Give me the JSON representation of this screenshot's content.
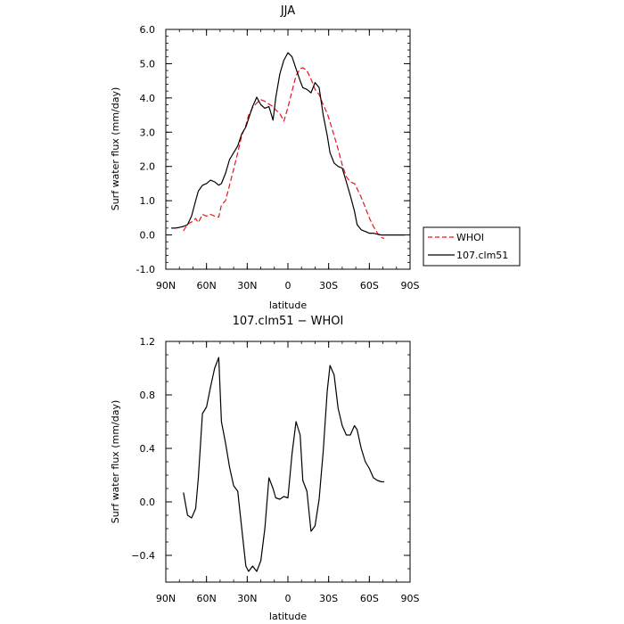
{
  "chart_data": [
    {
      "type": "line",
      "title": "JJA",
      "xlabel": "latitude",
      "ylabel": "Surf water flux (mm/day)",
      "xlim": [
        90,
        -90
      ],
      "ylim": [
        -1.0,
        6.0
      ],
      "xticks": [
        90,
        60,
        30,
        0,
        -30,
        -60,
        -90
      ],
      "xtick_labels": [
        "90N",
        "60N",
        "30N",
        "0",
        "30S",
        "60S",
        "90S"
      ],
      "yticks": [
        -1.0,
        0.0,
        1.0,
        2.0,
        3.0,
        4.0,
        5.0,
        6.0
      ],
      "ytick_labels": [
        "-1.0",
        "0.0",
        "1.0",
        "2.0",
        "3.0",
        "4.0",
        "5.0",
        "6.0"
      ],
      "legend_position": "outside-right",
      "series": [
        {
          "name": "WHOI",
          "color": "#e8141c",
          "dash": "dashed",
          "x": [
            77,
            74,
            71,
            68,
            66,
            63,
            60,
            57,
            54,
            51,
            49,
            46,
            43,
            40,
            37,
            34,
            31,
            29,
            26,
            23,
            20,
            17,
            14,
            11,
            9,
            6,
            3,
            0,
            -3,
            -6,
            -9,
            -11,
            -14,
            -17,
            -20,
            -23,
            -26,
            -29,
            -31,
            -34,
            -37,
            -40,
            -43,
            -46,
            -49,
            -51,
            -54,
            -57,
            -60,
            -63,
            -66,
            -69,
            -71
          ],
          "y": [
            0.12,
            0.32,
            0.38,
            0.48,
            0.36,
            0.6,
            0.55,
            0.6,
            0.55,
            0.52,
            0.88,
            1.0,
            1.45,
            1.92,
            2.4,
            2.9,
            3.2,
            3.5,
            3.72,
            3.85,
            3.95,
            3.9,
            3.82,
            3.75,
            3.65,
            3.55,
            3.32,
            3.72,
            4.2,
            4.65,
            4.85,
            4.88,
            4.8,
            4.55,
            4.25,
            4.1,
            3.8,
            3.55,
            3.3,
            2.9,
            2.5,
            2.05,
            1.7,
            1.55,
            1.5,
            1.35,
            1.1,
            0.8,
            0.5,
            0.25,
            0.05,
            -0.08,
            -0.1
          ]
        },
        {
          "name": "107.clm51",
          "color": "#000000",
          "dash": "solid",
          "x": [
            86,
            83,
            80,
            77,
            74,
            71,
            68,
            66,
            63,
            60,
            57,
            54,
            51,
            49,
            46,
            43,
            40,
            37,
            34,
            31,
            29,
            26,
            23,
            20,
            17,
            14,
            11,
            9,
            6,
            3,
            0,
            -3,
            -6,
            -9,
            -11,
            -14,
            -17,
            -20,
            -23,
            -26,
            -29,
            -31,
            -34,
            -37,
            -40,
            -43,
            -46,
            -49,
            -51,
            -54,
            -57,
            -60,
            -63,
            -66,
            -69,
            -71,
            -74,
            -77,
            -80,
            -83,
            -86
          ],
          "y": [
            0.2,
            0.2,
            0.22,
            0.25,
            0.3,
            0.55,
            1.0,
            1.28,
            1.45,
            1.5,
            1.6,
            1.55,
            1.45,
            1.5,
            1.8,
            2.2,
            2.4,
            2.6,
            2.95,
            3.15,
            3.4,
            3.75,
            4.02,
            3.8,
            3.7,
            3.75,
            3.35,
            4.0,
            4.7,
            5.1,
            5.32,
            5.2,
            4.85,
            4.5,
            4.3,
            4.25,
            4.15,
            4.45,
            4.3,
            3.5,
            2.9,
            2.4,
            2.1,
            2.0,
            1.95,
            1.55,
            1.15,
            0.7,
            0.3,
            0.15,
            0.1,
            0.05,
            0.05,
            0.02,
            0.0,
            0.0,
            0.0,
            0.0,
            0.0,
            0.0,
            0.0
          ]
        }
      ]
    },
    {
      "type": "line",
      "title": "107.clm51 − WHOI",
      "xlabel": "latitude",
      "ylabel": "Surf water flux (mm/day)",
      "xlim": [
        90,
        -90
      ],
      "ylim": [
        -0.6,
        1.2
      ],
      "xticks": [
        90,
        60,
        30,
        0,
        -30,
        -60,
        -90
      ],
      "xtick_labels": [
        "90N",
        "60N",
        "30N",
        "0",
        "30S",
        "60S",
        "90S"
      ],
      "yticks": [
        -0.4,
        0.0,
        0.4,
        0.8,
        1.2
      ],
      "ytick_labels": [
        "−0.4",
        "0.0",
        "0.4",
        "0.8",
        "1.2"
      ],
      "series": [
        {
          "color": "#000000",
          "dash": "solid",
          "x": [
            77,
            74,
            71,
            68,
            66,
            63,
            60,
            57,
            54,
            51,
            49,
            46,
            43,
            40,
            37,
            34,
            31,
            29,
            26,
            23,
            20,
            17,
            14,
            11,
            9,
            6,
            3,
            0,
            -3,
            -6,
            -9,
            -11,
            -14,
            -17,
            -20,
            -23,
            -26,
            -29,
            -31,
            -34,
            -37,
            -40,
            -43,
            -46,
            -49,
            -51,
            -54,
            -57,
            -60,
            -63,
            -66,
            -69,
            -71
          ],
          "y": [
            0.07,
            -0.1,
            -0.12,
            -0.05,
            0.18,
            0.66,
            0.71,
            0.86,
            1.0,
            1.08,
            0.6,
            0.44,
            0.26,
            0.12,
            0.08,
            -0.2,
            -0.48,
            -0.52,
            -0.48,
            -0.52,
            -0.44,
            -0.2,
            0.18,
            0.1,
            0.03,
            0.02,
            0.04,
            0.03,
            0.36,
            0.6,
            0.5,
            0.16,
            0.08,
            -0.22,
            -0.18,
            0.02,
            0.38,
            0.83,
            1.02,
            0.95,
            0.7,
            0.57,
            0.5,
            0.5,
            0.57,
            0.54,
            0.4,
            0.3,
            0.25,
            0.18,
            0.16,
            0.15,
            0.15
          ]
        }
      ]
    }
  ]
}
